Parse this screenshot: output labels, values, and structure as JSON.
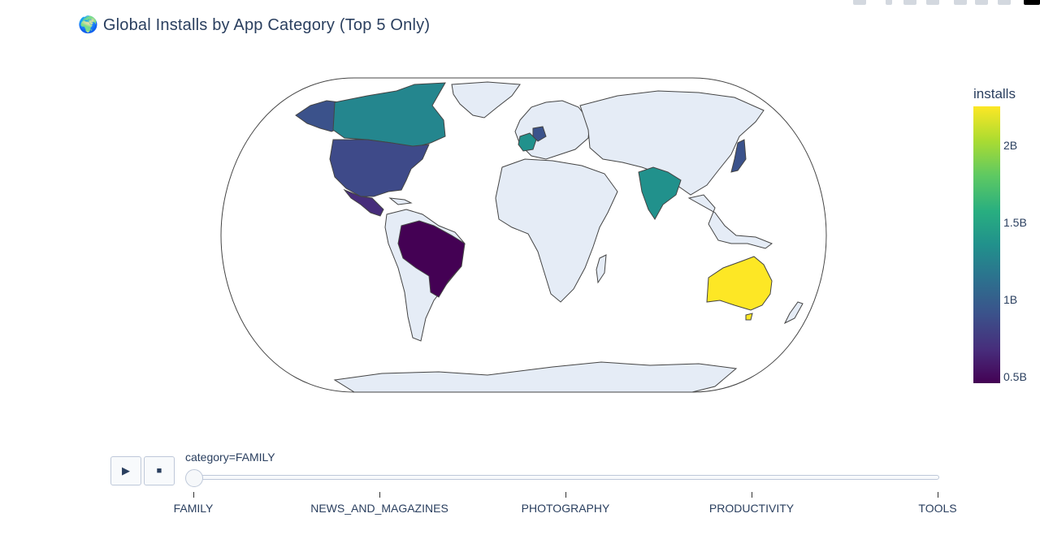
{
  "title": "🌍 Global Installs by App Category (Top 5 Only)",
  "colorbar": {
    "title": "installs",
    "ticks": [
      "2B",
      "1.5B",
      "1B",
      "0.5B"
    ],
    "colorscale": [
      "#440154",
      "#3b528b",
      "#21918c",
      "#5ec962",
      "#fde725"
    ]
  },
  "chart_data": {
    "type": "choropleth",
    "projection": "natural earth",
    "frame_label": "category=FAMILY",
    "value_label": "installs",
    "colorbar_range": [
      0.3,
      2.25
    ],
    "colorbar_units": "B",
    "regions": [
      {
        "location": "Australia",
        "value": 2.25
      },
      {
        "location": "Canada",
        "value": 1.3
      },
      {
        "location": "India",
        "value": 1.35
      },
      {
        "location": "United States",
        "value": 0.95
      },
      {
        "location": "Japan",
        "value": 0.9
      },
      {
        "location": "Germany",
        "value": 0.9
      },
      {
        "location": "France",
        "value": 1.25
      },
      {
        "location": "Mexico",
        "value": 0.75
      },
      {
        "location": "Brazil",
        "value": 0.35
      }
    ]
  },
  "player": {
    "play_icon": "play-icon",
    "stop_icon": "stop-icon",
    "current_label": "category=FAMILY",
    "steps": [
      "FAMILY",
      "NEWS_AND_MAGAZINES",
      "PHOTOGRAPHY",
      "PRODUCTIVITY",
      "TOOLS"
    ],
    "active_index": 0
  },
  "colors": {
    "land": "#e5ecf6",
    "coast": "#444444",
    "text": "#2a3f5f"
  }
}
